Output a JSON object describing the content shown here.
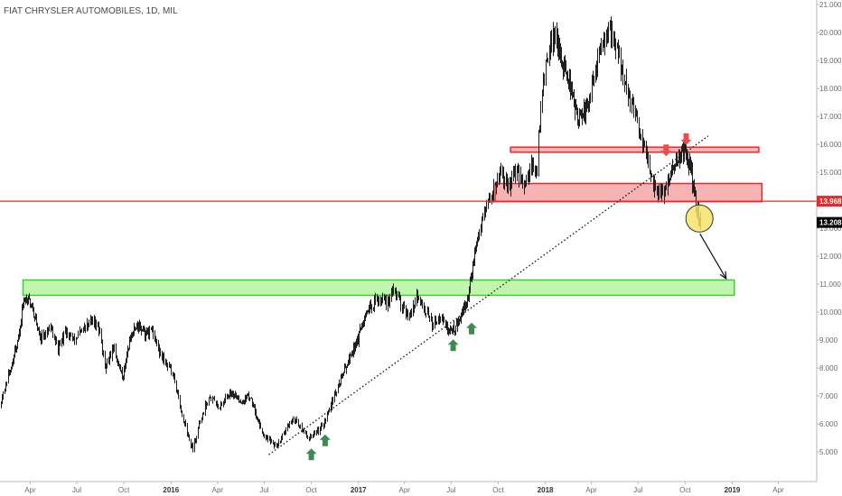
{
  "title": "FIAT CHRYSLER AUTOMOBILES, 1D, MIL",
  "colors": {
    "background": "#ffffff",
    "candle": "#1f1f1f",
    "resistance_line": "#e32b2b",
    "resistance_zone_fill": "#f4a0a0",
    "support_zone_fill": "#b6f5a0",
    "support_zone_border": "#39d12b",
    "up_arrow": "#3f8a4f",
    "down_arrow": "#e84c4c",
    "highlight_circle": "#f7e36a",
    "axis_text": "#6b6b6b",
    "current_price_tag": "#000000"
  },
  "chart_data": {
    "type": "candlestick",
    "title": "FIAT CHRYSLER AUTOMOBILES, 1D, MIL",
    "xlabel": "",
    "ylabel": "",
    "x_range": [
      "2015-02-01",
      "2019-06-15"
    ],
    "ylim": [
      4.5,
      21.1
    ],
    "y_ticks": [
      "5.000",
      "6.000",
      "7.000",
      "8.000",
      "9.000",
      "10.000",
      "11.000",
      "12.000",
      "13.000",
      "14.000",
      "15.000",
      "16.000",
      "17.000",
      "18.000",
      "19.000",
      "20.000",
      "21.000"
    ],
    "x_ticks": [
      {
        "date": "2015-04-01",
        "label": "Apr",
        "bold": false
      },
      {
        "date": "2015-07-01",
        "label": "Jul",
        "bold": false
      },
      {
        "date": "2015-10-01",
        "label": "Oct",
        "bold": false
      },
      {
        "date": "2016-01-01",
        "label": "2016",
        "bold": true
      },
      {
        "date": "2016-04-01",
        "label": "Apr",
        "bold": false
      },
      {
        "date": "2016-07-01",
        "label": "Jul",
        "bold": false
      },
      {
        "date": "2016-10-01",
        "label": "Oct",
        "bold": false
      },
      {
        "date": "2017-01-01",
        "label": "2017",
        "bold": true
      },
      {
        "date": "2017-04-01",
        "label": "Apr",
        "bold": false
      },
      {
        "date": "2017-07-01",
        "label": "Jul",
        "bold": false
      },
      {
        "date": "2017-10-01",
        "label": "Oct",
        "bold": false
      },
      {
        "date": "2018-01-01",
        "label": "2018",
        "bold": true
      },
      {
        "date": "2018-04-01",
        "label": "Apr",
        "bold": false
      },
      {
        "date": "2018-07-01",
        "label": "Jul",
        "bold": false
      },
      {
        "date": "2018-10-01",
        "label": "Oct",
        "bold": false
      },
      {
        "date": "2019-01-01",
        "label": "2019",
        "bold": true
      },
      {
        "date": "2019-04-01",
        "label": "Apr",
        "bold": false
      }
    ],
    "price_path": [
      [
        "2015-02-01",
        6.7
      ],
      [
        "2015-02-20",
        7.9
      ],
      [
        "2015-03-10",
        9.2
      ],
      [
        "2015-03-20",
        10.6
      ],
      [
        "2015-04-05",
        10.2
      ],
      [
        "2015-04-20",
        9.0
      ],
      [
        "2015-05-10",
        9.5
      ],
      [
        "2015-05-25",
        8.7
      ],
      [
        "2015-06-10",
        9.3
      ],
      [
        "2015-06-25",
        9.0
      ],
      [
        "2015-07-15",
        9.4
      ],
      [
        "2015-07-30",
        9.8
      ],
      [
        "2015-08-15",
        9.3
      ],
      [
        "2015-08-25",
        8.0
      ],
      [
        "2015-09-10",
        8.7
      ],
      [
        "2015-09-28",
        7.7
      ],
      [
        "2015-10-10",
        8.9
      ],
      [
        "2015-10-25",
        9.6
      ],
      [
        "2015-11-10",
        9.2
      ],
      [
        "2015-11-25",
        9.3
      ],
      [
        "2015-12-10",
        8.5
      ],
      [
        "2016-01-05",
        7.8
      ],
      [
        "2016-01-20",
        6.5
      ],
      [
        "2016-02-05",
        5.5
      ],
      [
        "2016-02-12",
        5.1
      ],
      [
        "2016-02-25",
        6.0
      ],
      [
        "2016-03-15",
        7.0
      ],
      [
        "2016-04-05",
        6.6
      ],
      [
        "2016-04-25",
        7.2
      ],
      [
        "2016-05-15",
        6.8
      ],
      [
        "2016-06-05",
        7.0
      ],
      [
        "2016-06-20",
        6.0
      ],
      [
        "2016-06-28",
        5.7
      ],
      [
        "2016-07-10",
        5.4
      ],
      [
        "2016-07-25",
        5.2
      ],
      [
        "2016-08-10",
        5.7
      ],
      [
        "2016-08-25",
        6.2
      ],
      [
        "2016-09-10",
        5.9
      ],
      [
        "2016-09-25",
        5.5
      ],
      [
        "2016-10-10",
        5.7
      ],
      [
        "2016-10-25",
        6.0
      ],
      [
        "2016-11-10",
        6.8
      ],
      [
        "2016-11-25",
        7.5
      ],
      [
        "2016-12-10",
        8.2
      ],
      [
        "2016-12-25",
        8.8
      ],
      [
        "2017-01-10",
        9.6
      ],
      [
        "2017-01-25",
        10.2
      ],
      [
        "2017-02-10",
        10.5
      ],
      [
        "2017-02-25",
        10.3
      ],
      [
        "2017-03-10",
        10.8
      ],
      [
        "2017-03-25",
        10.3
      ],
      [
        "2017-04-10",
        9.9
      ],
      [
        "2017-04-25",
        10.5
      ],
      [
        "2017-05-10",
        10.1
      ],
      [
        "2017-05-25",
        9.6
      ],
      [
        "2017-06-10",
        9.9
      ],
      [
        "2017-06-25",
        9.3
      ],
      [
        "2017-07-10",
        9.5
      ],
      [
        "2017-07-25",
        10.1
      ],
      [
        "2017-08-05",
        10.7
      ],
      [
        "2017-08-15",
        12.0
      ],
      [
        "2017-08-25",
        12.8
      ],
      [
        "2017-09-05",
        13.6
      ],
      [
        "2017-09-20",
        14.3
      ],
      [
        "2017-10-05",
        15.0
      ],
      [
        "2017-10-20",
        14.4
      ],
      [
        "2017-11-05",
        15.0
      ],
      [
        "2017-11-20",
        14.6
      ],
      [
        "2017-12-05",
        15.3
      ],
      [
        "2017-12-15",
        15.0
      ],
      [
        "2017-12-22",
        17.2
      ],
      [
        "2018-01-05",
        19.3
      ],
      [
        "2018-01-20",
        20.0
      ],
      [
        "2018-02-05",
        18.8
      ],
      [
        "2018-02-20",
        18.0
      ],
      [
        "2018-03-05",
        16.8
      ],
      [
        "2018-03-20",
        17.2
      ],
      [
        "2018-04-05",
        18.4
      ],
      [
        "2018-04-20",
        19.5
      ],
      [
        "2018-05-05",
        20.1
      ],
      [
        "2018-05-20",
        19.4
      ],
      [
        "2018-06-05",
        18.3
      ],
      [
        "2018-06-20",
        17.2
      ],
      [
        "2018-07-05",
        16.4
      ],
      [
        "2018-07-20",
        15.6
      ],
      [
        "2018-07-28",
        14.6
      ],
      [
        "2018-08-10",
        14.3
      ],
      [
        "2018-08-20",
        14.2
      ],
      [
        "2018-09-01",
        14.9
      ],
      [
        "2018-09-15",
        15.4
      ],
      [
        "2018-09-28",
        15.8
      ],
      [
        "2018-10-10",
        15.2
      ],
      [
        "2018-10-20",
        14.0
      ],
      [
        "2018-10-30",
        13.2
      ]
    ],
    "horizontal_levels": [
      {
        "name": "resistance",
        "value": 13.968,
        "label": "13.968",
        "color": "#e32b2b"
      }
    ],
    "current_price": {
      "value": 13.208,
      "label": "13.208"
    },
    "zones": [
      {
        "kind": "support",
        "y_low": 10.6,
        "y_high": 11.15,
        "x_start": "2015-03-18",
        "x_end": "2019-01-05"
      },
      {
        "kind": "resistance",
        "y_low": 13.95,
        "y_high": 14.6,
        "x_start": "2017-09-25",
        "x_end": "2019-02-28"
      },
      {
        "kind": "resistance",
        "y_low": 15.72,
        "y_high": 15.9,
        "x_start": "2017-10-25",
        "x_end": "2019-02-22"
      }
    ],
    "trendline": {
      "x_start": "2016-07-10",
      "y_start": 4.9,
      "x_end": "2018-11-15",
      "y_end": 16.3
    },
    "up_arrows": [
      {
        "date": "2016-10-01",
        "y": 4.9
      },
      {
        "date": "2016-10-28",
        "y": 5.4
      },
      {
        "date": "2017-07-05",
        "y": 8.8
      },
      {
        "date": "2017-08-10",
        "y": 9.4
      }
    ],
    "down_arrows": [
      {
        "date": "2018-08-25",
        "y": 15.8
      },
      {
        "date": "2018-10-03",
        "y": 16.2
      }
    ],
    "highlight_circle": {
      "date": "2018-10-29",
      "y": 13.35
    },
    "projection_arrow": {
      "x_start": "2018-10-30",
      "y_start": 12.8,
      "x_end": "2018-12-20",
      "y_end": 11.2
    }
  }
}
